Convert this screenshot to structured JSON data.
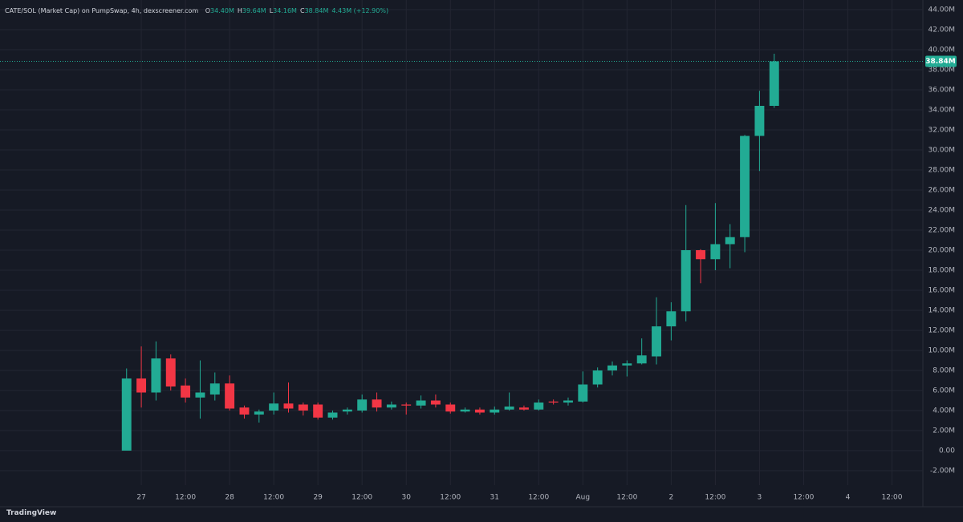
{
  "header": {
    "title": "CATE/SOL (Market Cap) on PumpSwap, 4h, dexscreener.com",
    "ohlc": [
      {
        "label": "O",
        "value": "34.40M"
      },
      {
        "label": "H",
        "value": "39.64M"
      },
      {
        "label": "L",
        "value": "34.16M"
      },
      {
        "label": "C",
        "value": "38.84M"
      }
    ],
    "change": "4.43M (+12.90%)"
  },
  "footer": {
    "brand": "TradingView"
  },
  "chart_data": {
    "type": "candlestick",
    "x": [
      0,
      1,
      2,
      3,
      4,
      5,
      6,
      7,
      8,
      9,
      10,
      11,
      12,
      13,
      14,
      15,
      16,
      17,
      18,
      19,
      20,
      21,
      22,
      23,
      24,
      25,
      26,
      27,
      28,
      29,
      30,
      31,
      32,
      33,
      34,
      35,
      36,
      37,
      38,
      39,
      40,
      41,
      42,
      43,
      44
    ],
    "open": [
      0,
      7.2,
      5.8,
      9.2,
      6.5,
      5.3,
      5.6,
      6.7,
      4.3,
      3.6,
      4.0,
      4.7,
      4.6,
      4.6,
      3.3,
      3.9,
      4.0,
      5.1,
      4.3,
      4.6,
      4.5,
      5.0,
      4.6,
      3.9,
      4.1,
      3.8,
      4.1,
      4.3,
      4.1,
      4.9,
      4.8,
      4.9,
      6.6,
      8.0,
      8.5,
      8.7,
      9.4,
      12.4,
      13.9,
      20.0,
      19.1,
      20.6,
      21.3,
      31.4,
      34.4
    ],
    "high": [
      8.2,
      10.4,
      10.9,
      9.6,
      7.2,
      9.0,
      7.8,
      7.5,
      4.5,
      4.1,
      5.8,
      6.8,
      4.8,
      4.8,
      4.0,
      4.3,
      5.6,
      5.8,
      4.9,
      4.8,
      5.5,
      5.6,
      4.8,
      4.3,
      4.3,
      4.4,
      5.8,
      4.5,
      5.1,
      5.1,
      5.3,
      7.9,
      8.3,
      8.9,
      9.0,
      11.2,
      15.3,
      14.8,
      24.5,
      20.1,
      24.7,
      22.6,
      31.5,
      35.9,
      39.6
    ],
    "low": [
      0,
      4.3,
      5.0,
      6.0,
      4.8,
      3.2,
      5.0,
      4.0,
      3.2,
      2.8,
      3.6,
      3.8,
      3.5,
      3.1,
      3.1,
      3.6,
      3.8,
      3.9,
      4.1,
      3.6,
      4.2,
      4.3,
      3.7,
      3.8,
      3.6,
      3.6,
      4.0,
      4.0,
      4.0,
      4.6,
      4.5,
      4.8,
      6.3,
      7.5,
      7.4,
      8.6,
      8.6,
      11.0,
      12.9,
      16.7,
      18.0,
      18.2,
      19.8,
      27.9,
      34.2
    ],
    "close": [
      7.2,
      5.8,
      9.2,
      6.4,
      5.3,
      5.8,
      6.7,
      4.2,
      3.6,
      3.9,
      4.7,
      4.2,
      4.0,
      3.3,
      3.8,
      4.1,
      5.1,
      4.3,
      4.6,
      4.5,
      5.0,
      4.6,
      3.9,
      4.1,
      3.8,
      4.1,
      4.4,
      4.1,
      4.8,
      4.8,
      5.0,
      6.6,
      8.0,
      8.5,
      8.7,
      9.5,
      12.4,
      13.9,
      20.0,
      19.1,
      20.6,
      21.3,
      31.4,
      34.4,
      38.84
    ],
    "up_color": "#22ab94",
    "down_color": "#f23645",
    "last_price": {
      "value": 38.84,
      "label": "38.84M"
    },
    "xlim": [
      -8.6,
      54.1
    ],
    "ylim": [
      -3.44,
      44.96
    ],
    "grid": true,
    "xticks": [
      {
        "value": 1,
        "label": "27"
      },
      {
        "value": 4,
        "label": "12:00"
      },
      {
        "value": 7,
        "label": "28"
      },
      {
        "value": 10,
        "label": "12:00"
      },
      {
        "value": 13,
        "label": "29"
      },
      {
        "value": 16,
        "label": "12:00"
      },
      {
        "value": 19,
        "label": "30"
      },
      {
        "value": 22,
        "label": "12:00"
      },
      {
        "value": 25,
        "label": "31"
      },
      {
        "value": 28,
        "label": "12:00"
      },
      {
        "value": 31,
        "label": "Aug"
      },
      {
        "value": 34,
        "label": "12:00"
      },
      {
        "value": 37,
        "label": "2"
      },
      {
        "value": 40,
        "label": "12:00"
      },
      {
        "value": 43,
        "label": "3"
      },
      {
        "value": 46,
        "label": "12:00"
      },
      {
        "value": 49,
        "label": "4"
      },
      {
        "value": 52,
        "label": "12:00"
      }
    ],
    "yticks": [
      {
        "value": -2,
        "label": "-2.00M"
      },
      {
        "value": 0,
        "label": "0.00"
      },
      {
        "value": 2,
        "label": "2.00M"
      },
      {
        "value": 4,
        "label": "4.00M"
      },
      {
        "value": 6,
        "label": "6.00M"
      },
      {
        "value": 8,
        "label": "8.00M"
      },
      {
        "value": 10,
        "label": "10.00M"
      },
      {
        "value": 12,
        "label": "12.00M"
      },
      {
        "value": 14,
        "label": "14.00M"
      },
      {
        "value": 16,
        "label": "16.00M"
      },
      {
        "value": 18,
        "label": "18.00M"
      },
      {
        "value": 20,
        "label": "20.00M"
      },
      {
        "value": 22,
        "label": "22.00M"
      },
      {
        "value": 24,
        "label": "24.00M"
      },
      {
        "value": 26,
        "label": "26.00M"
      },
      {
        "value": 28,
        "label": "28.00M"
      },
      {
        "value": 30,
        "label": "30.00M"
      },
      {
        "value": 32,
        "label": "32.00M"
      },
      {
        "value": 34,
        "label": "34.00M"
      },
      {
        "value": 36,
        "label": "36.00M"
      },
      {
        "value": 38,
        "label": "38.00M"
      },
      {
        "value": 40,
        "label": "40.00M"
      },
      {
        "value": 42,
        "label": "42.00M"
      },
      {
        "value": 44,
        "label": "44.00M"
      }
    ]
  }
}
